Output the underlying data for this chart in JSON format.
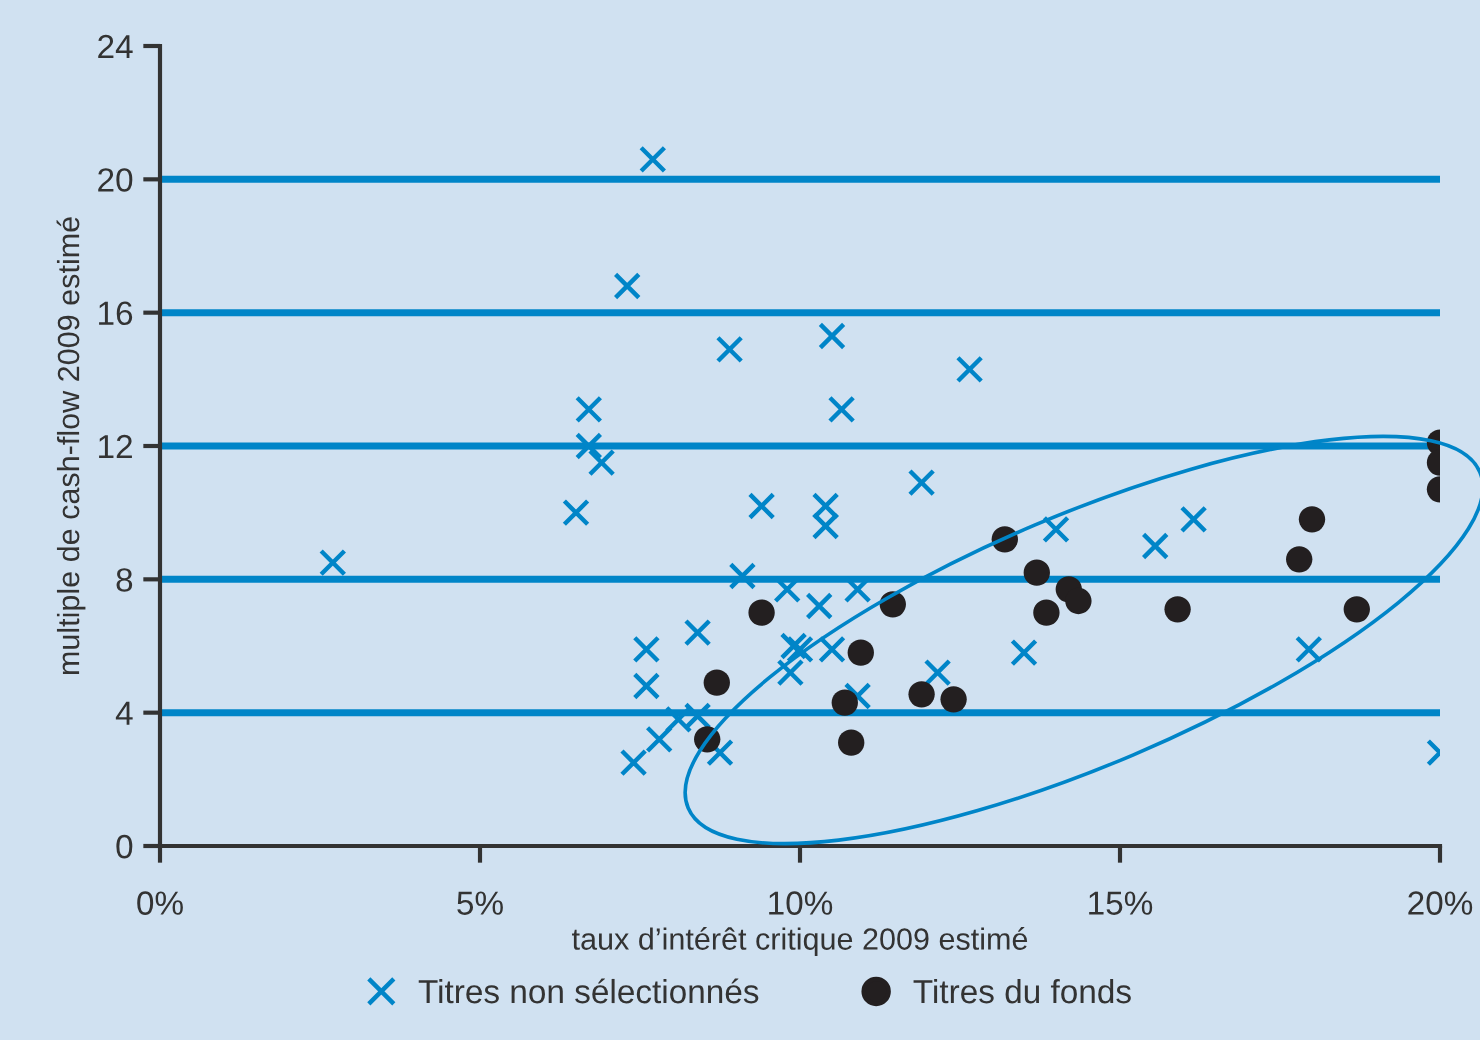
{
  "chart_data": {
    "type": "scatter",
    "xlabel": "taux d’intérêt critique 2009 estimé",
    "ylabel": "multiple de cash-flow 2009 estimé",
    "xlim": [
      0,
      20
    ],
    "xticks": [
      {
        "value": 0,
        "label": "0%"
      },
      {
        "value": 5,
        "label": "5%"
      },
      {
        "value": 10,
        "label": "10%"
      },
      {
        "value": 15,
        "label": "15%"
      },
      {
        "value": 20,
        "label": "20%"
      }
    ],
    "ylim": [
      0,
      24
    ],
    "yticks": [
      0,
      4,
      8,
      12,
      16,
      20,
      24
    ],
    "grid": "y",
    "legend": "bottom",
    "series": [
      {
        "name": "Titres non sélectionnés",
        "color": "#0085c8",
        "marker": "cross",
        "x": [
          2.7,
          6.5,
          6.7,
          6.7,
          6.9,
          7.3,
          7.7,
          7.6,
          7.6,
          7.4,
          7.8,
          8.1,
          8.4,
          8.75,
          8.4,
          8.9,
          9.4,
          9.1,
          9.8,
          9.85,
          9.9,
          10.5,
          10.65,
          12.65,
          10.4,
          10.4,
          11.9,
          10.3,
          10.9,
          10.0,
          10.5,
          10.9,
          12.15,
          13.5,
          14.0,
          15.55,
          16.15,
          17.95,
          20.0
        ],
        "values": [
          8.5,
          10.0,
          13.1,
          12.0,
          11.5,
          16.8,
          20.6,
          5.9,
          4.8,
          2.5,
          3.2,
          3.8,
          3.9,
          2.8,
          6.4,
          14.9,
          10.2,
          8.1,
          7.7,
          5.2,
          6.0,
          15.3,
          13.1,
          14.3,
          10.2,
          9.6,
          10.9,
          7.2,
          7.7,
          5.9,
          5.9,
          4.5,
          5.2,
          5.8,
          9.5,
          9.0,
          9.8,
          5.9,
          2.8
        ]
      },
      {
        "name": "Titres du fonds",
        "color": "#231f20",
        "marker": "circle",
        "x": [
          9.4,
          8.7,
          8.55,
          11.45,
          10.95,
          10.7,
          10.8,
          11.9,
          12.4,
          13.2,
          13.7,
          13.85,
          14.2,
          14.35,
          15.9,
          18.0,
          17.8,
          18.7,
          20.0,
          20.0,
          20.0
        ],
        "values": [
          7.0,
          4.9,
          3.2,
          7.25,
          5.8,
          4.3,
          3.1,
          4.55,
          4.4,
          9.2,
          8.2,
          7.0,
          7.7,
          7.35,
          7.1,
          9.8,
          8.6,
          7.1,
          12.1,
          11.5,
          10.7
        ]
      }
    ]
  }
}
